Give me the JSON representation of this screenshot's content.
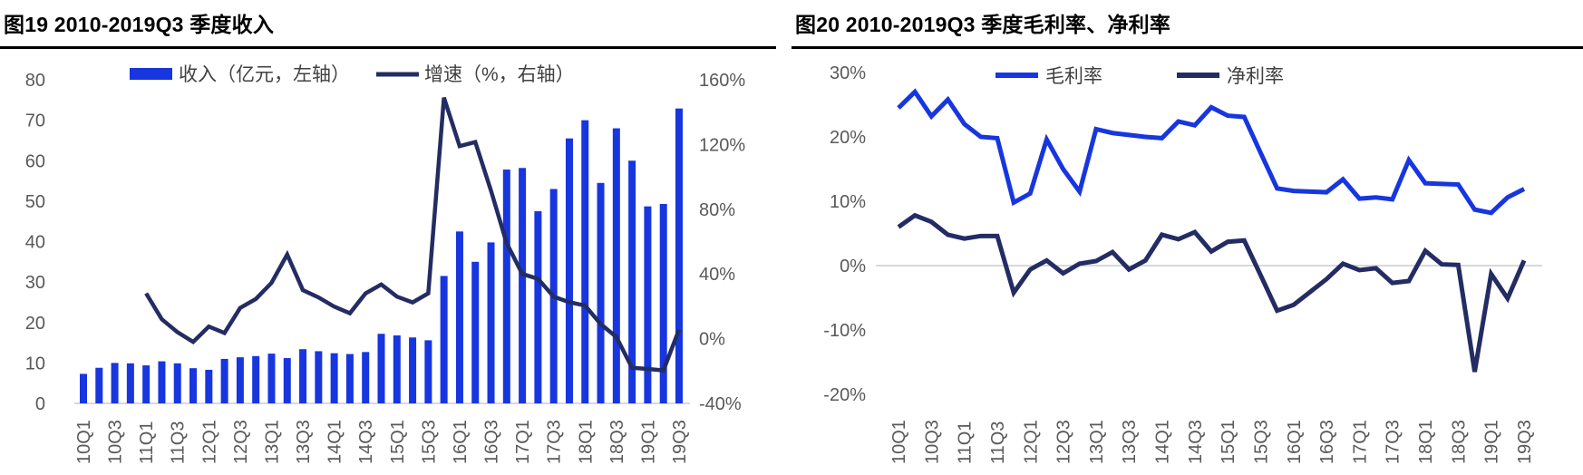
{
  "colors": {
    "blue": "#1736df",
    "navy": "#232c63",
    "axis_text": "#595959",
    "gridline": "#d9d9d9",
    "legend_text": "#404040",
    "title_rule": "#000000"
  },
  "chart_data": [
    {
      "type": "bar+line",
      "title": "图19 2010-2019Q3 季度收入",
      "legend": [
        {
          "label": "收入（亿元，左轴）",
          "swatch": "bar",
          "color_key": "blue"
        },
        {
          "label": "增速（%，右轴）",
          "swatch": "line",
          "color_key": "navy"
        }
      ],
      "categories": [
        "10Q1",
        "10Q2",
        "10Q3",
        "10Q4",
        "11Q1",
        "11Q2",
        "11Q3",
        "11Q4",
        "12Q1",
        "12Q2",
        "12Q3",
        "12Q4",
        "13Q1",
        "13Q2",
        "13Q3",
        "13Q4",
        "14Q1",
        "14Q2",
        "14Q3",
        "14Q4",
        "15Q1",
        "15Q2",
        "15Q3",
        "15Q4",
        "16Q1",
        "16Q2",
        "16Q3",
        "16Q4",
        "17Q1",
        "17Q2",
        "17Q3",
        "17Q4",
        "18Q1",
        "18Q2",
        "18Q3",
        "18Q4",
        "19Q1",
        "19Q2",
        "19Q3"
      ],
      "x_label_every": 2,
      "left_axis": {
        "min": 0,
        "max": 80,
        "step": 10,
        "tick_labels": [
          "80",
          "70",
          "60",
          "50",
          "40",
          "30",
          "20",
          "10",
          "0"
        ]
      },
      "right_axis": {
        "min": -40,
        "max": 160,
        "step": 40,
        "tick_labels": [
          "160%",
          "120%",
          "80%",
          "40%",
          "0%",
          "-40%"
        ]
      },
      "series": [
        {
          "name": "收入（亿元，左轴）",
          "type": "bar",
          "axis": "left",
          "color_key": "blue",
          "values": [
            7.3,
            8.8,
            10,
            9.9,
            9.4,
            10.4,
            9.9,
            8.7,
            8.3,
            11,
            11.4,
            11.7,
            12.3,
            11.2,
            13.4,
            12.9,
            12.4,
            12.2,
            12.7,
            17.2,
            16.8,
            16.3,
            15.6,
            31.5,
            42.5,
            35,
            39.8,
            57.8,
            58.2,
            47.5,
            53,
            65.5,
            70,
            54.5,
            68,
            60,
            48.7,
            49.3,
            72.9
          ]
        },
        {
          "name": "增速（%，右轴）",
          "type": "line",
          "axis": "right",
          "color_key": "navy",
          "values": [
            null,
            null,
            null,
            null,
            28,
            12,
            4,
            -2,
            7.5,
            3.5,
            19,
            24.5,
            34.5,
            52,
            30,
            25.5,
            19.8,
            15.7,
            28,
            33.5,
            26,
            22.4,
            28,
            149,
            119,
            121.5,
            91.5,
            59,
            40,
            37,
            26,
            22.5,
            20.5,
            9,
            1,
            -18,
            -18.7,
            -19.6,
            5.6
          ]
        }
      ]
    },
    {
      "type": "line",
      "title": "图20 2010-2019Q3 季度毛利率、净利率",
      "legend": [
        {
          "label": "毛利率",
          "swatch": "line",
          "color_key": "blue"
        },
        {
          "label": "净利率",
          "swatch": "line",
          "color_key": "navy"
        }
      ],
      "categories": [
        "10Q1",
        "10Q2",
        "10Q3",
        "10Q4",
        "11Q1",
        "11Q2",
        "11Q3",
        "11Q4",
        "12Q1",
        "12Q2",
        "12Q3",
        "12Q4",
        "13Q1",
        "13Q2",
        "13Q3",
        "13Q4",
        "14Q1",
        "14Q2",
        "14Q3",
        "14Q4",
        "15Q1",
        "15Q2",
        "15Q3",
        "15Q4",
        "16Q1",
        "16Q2",
        "16Q3",
        "16Q4",
        "17Q1",
        "17Q2",
        "17Q3",
        "17Q4",
        "18Q1",
        "18Q2",
        "18Q3",
        "18Q4",
        "19Q1",
        "19Q2",
        "19Q3"
      ],
      "x_label_every": 2,
      "y_axis": {
        "min": -20,
        "max": 30,
        "step": 10,
        "tick_labels": [
          "30%",
          "20%",
          "10%",
          "0%",
          "-10%",
          "-20%"
        ],
        "zero_gridline": true
      },
      "series": [
        {
          "name": "毛利率",
          "type": "line",
          "color_key": "blue",
          "values": [
            24.5,
            27,
            23.2,
            25.8,
            22,
            20,
            19.8,
            9.8,
            11.2,
            19.6,
            15,
            11.5,
            21.2,
            20.6,
            20.3,
            20,
            19.8,
            22.4,
            21.8,
            24.6,
            23.3,
            23.1,
            17.5,
            12,
            11.6,
            11.5,
            11.4,
            13.4,
            10.4,
            10.6,
            10.3,
            16.4,
            12.8,
            12.7,
            12.6,
            8.7,
            8.2,
            10.6,
            11.9
          ]
        },
        {
          "name": "净利率",
          "type": "line",
          "color_key": "navy",
          "values": [
            6,
            7.8,
            6.8,
            4.8,
            4.2,
            4.6,
            4.6,
            -4.2,
            -0.6,
            0.8,
            -1.2,
            0.3,
            0.7,
            2.1,
            -0.6,
            0.8,
            4.8,
            4.1,
            5.2,
            2.2,
            3.7,
            3.9,
            -1.5,
            -7,
            -6.1,
            -4.1,
            -2.1,
            0.3,
            -0.7,
            -0.4,
            -2.7,
            -2.4,
            2.3,
            0.2,
            0.1,
            -16.5,
            -1.3,
            -5.1,
            0.8
          ]
        }
      ]
    }
  ]
}
